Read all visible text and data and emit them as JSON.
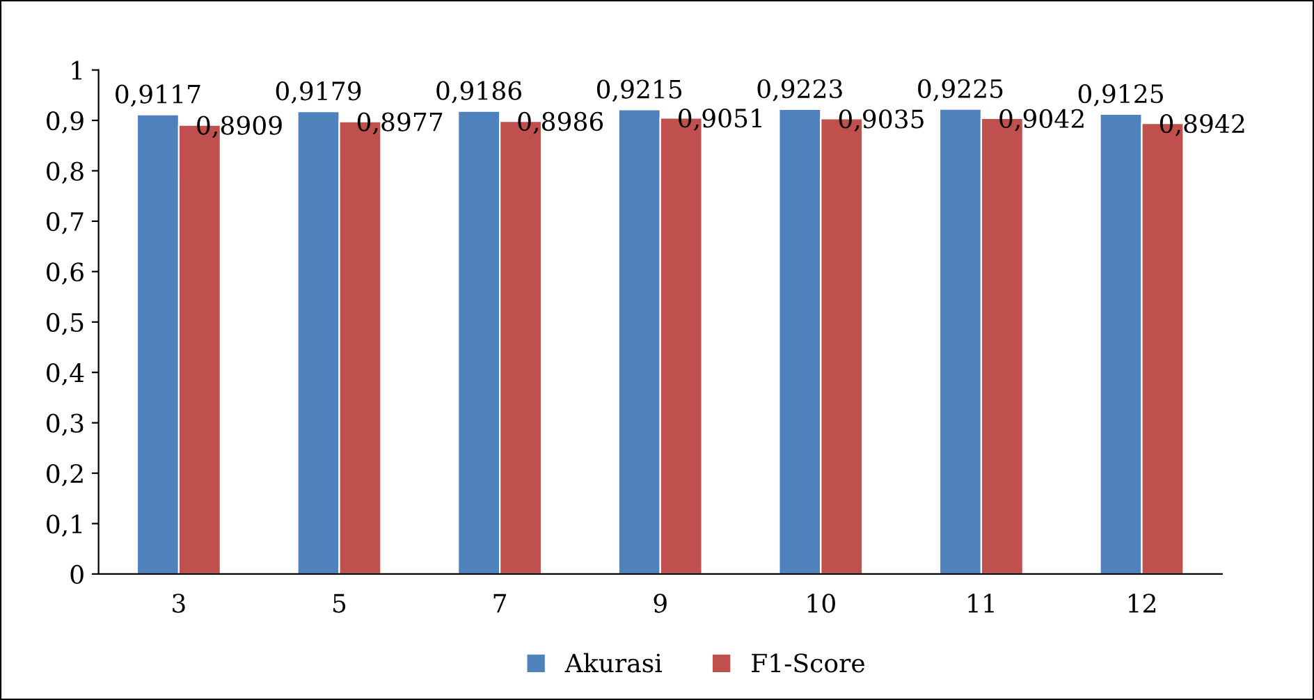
{
  "chart_data": {
    "type": "bar",
    "categories": [
      "3",
      "5",
      "7",
      "9",
      "10",
      "11",
      "12"
    ],
    "series": [
      {
        "name": "Akurasi",
        "color": "#4f81bd",
        "values": [
          0.9117,
          0.9179,
          0.9186,
          0.9215,
          0.9223,
          0.9225,
          0.9125
        ],
        "value_labels": [
          "0,9117",
          "0,9179",
          "0,9186",
          "0,9215",
          "0,9223",
          "0,9225",
          "0,9125"
        ]
      },
      {
        "name": "F1-Score",
        "color": "#c0504d",
        "values": [
          0.8909,
          0.8977,
          0.8986,
          0.9051,
          0.9035,
          0.9042,
          0.8942
        ],
        "value_labels": [
          "0,8909",
          "0,8977",
          "0,8986",
          "0,9051",
          "0,9035",
          "0,9042",
          "0,8942"
        ]
      }
    ],
    "ylim": [
      0,
      1
    ],
    "yticks": [
      0,
      {
        "value": 0.1,
        "label": "0,1"
      },
      {
        "value": 0.2,
        "label": "0,2"
      },
      {
        "value": 0.3,
        "label": "0,3"
      },
      {
        "value": 0.4,
        "label": "0,4"
      },
      {
        "value": 0.5,
        "label": "0,5"
      },
      {
        "value": 0.6,
        "label": "0,6"
      },
      {
        "value": 0.7,
        "label": "0,7"
      },
      {
        "value": 0.8,
        "label": "0,8"
      },
      {
        "value": 0.9,
        "label": "0,9"
      },
      1
    ],
    "grid": false,
    "legend": "bottom"
  }
}
